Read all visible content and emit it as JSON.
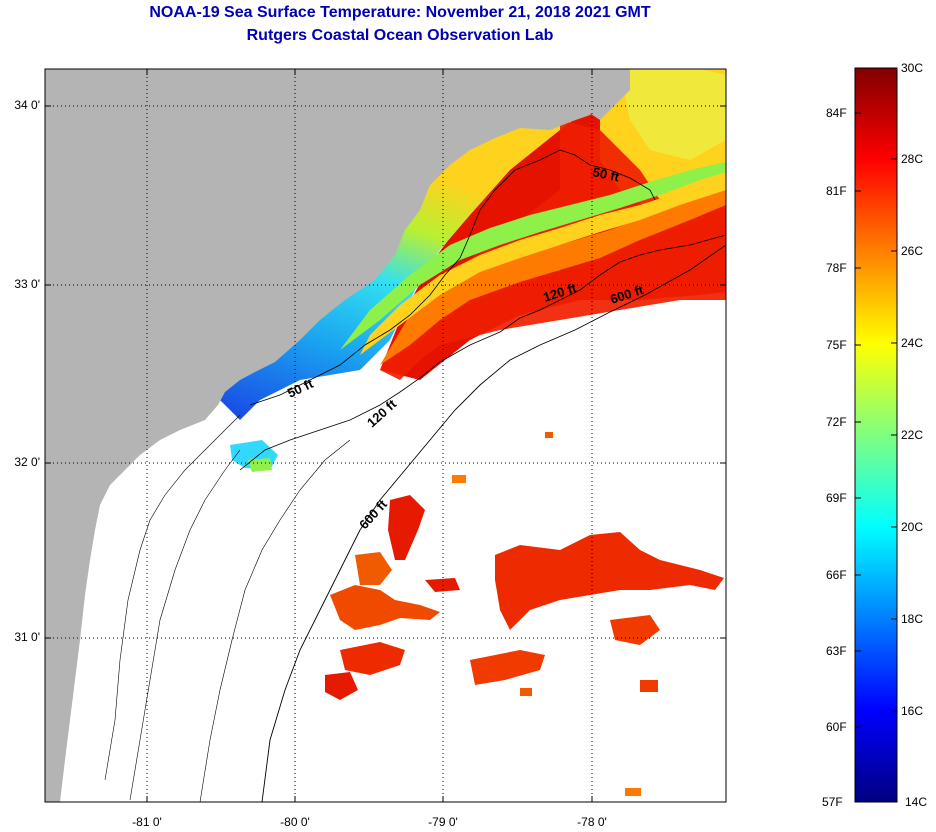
{
  "title": {
    "line1": "NOAA-19 Sea Surface Temperature:  November 21, 2018 2021 GMT",
    "line2": "Rutgers Coastal Ocean Observation Lab"
  },
  "map": {
    "lon_ticks": [
      "-81 0'",
      "-80 0'",
      "-79 0'",
      "-78 0'"
    ],
    "lat_ticks": [
      "34 0'",
      "33 0'",
      "32 0'",
      "31 0'"
    ],
    "contour_labels": {
      "nearshore_50": "50 ft",
      "offshore_50": "50 ft",
      "nearshore_120": "120 ft",
      "offshore_120": "120 ft",
      "nearshore_600": "600 ft",
      "offshore_600": "600 ft"
    },
    "land_color": "#b4b4b4",
    "no_data_color": "#ffffff"
  },
  "colorbar": {
    "celsius": [
      "30C",
      "28C",
      "26C",
      "24C",
      "22C",
      "20C",
      "18C",
      "16C",
      "14C"
    ],
    "fahrenheit": [
      "84F",
      "81F",
      "78F",
      "75F",
      "72F",
      "69F",
      "66F",
      "63F",
      "60F",
      "57F"
    ],
    "range_c": [
      14,
      30
    ],
    "colormap": "jet"
  }
}
